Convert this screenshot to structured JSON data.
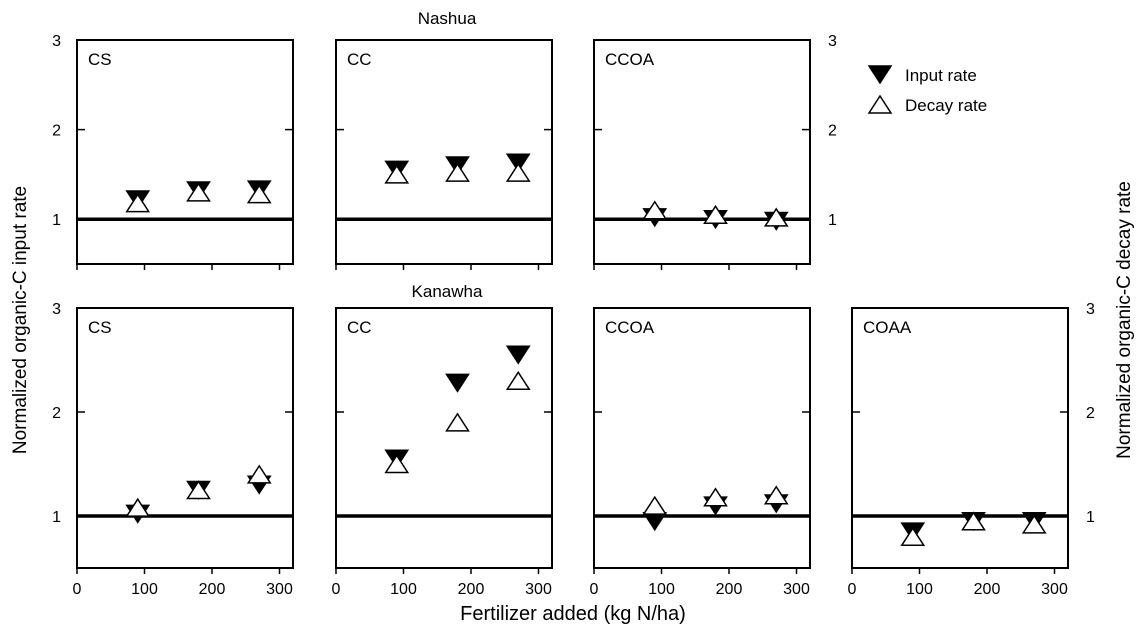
{
  "figure": {
    "top_title": "Nashua",
    "bottom_title": "Kanawha",
    "ylabel_left": "Normalized organic-C input rate",
    "ylabel_right": "Normalized organic-C decay rate",
    "xlabel": "Fertilizer added (kg N/ha)",
    "legend": [
      {
        "label": "Input rate",
        "marker": "filled-down-triangle"
      },
      {
        "label": "Decay rate",
        "marker": "open-up-triangle"
      }
    ],
    "colors": {
      "marker": "#000000",
      "reference_line": "#000000"
    }
  },
  "chart_data": [
    {
      "type": "scatter",
      "group": "Nashua",
      "panel_label": "CS",
      "x": [
        90,
        180,
        270
      ],
      "xlim": [
        0,
        320
      ],
      "ylim": [
        0.5,
        3
      ],
      "xticks": [
        0,
        100,
        200,
        300
      ],
      "yticks": [
        1,
        2,
        3
      ],
      "reference_line": 1,
      "series": [
        {
          "name": "Input rate",
          "values": [
            1.22,
            1.32,
            1.33
          ]
        },
        {
          "name": "Decay rate",
          "values": [
            1.18,
            1.3,
            1.28
          ]
        }
      ]
    },
    {
      "type": "scatter",
      "group": "Nashua",
      "panel_label": "CC",
      "x": [
        90,
        180,
        270
      ],
      "xlim": [
        0,
        320
      ],
      "ylim": [
        0.5,
        3
      ],
      "xticks": [
        0,
        100,
        200,
        300
      ],
      "yticks": [
        1,
        2,
        3
      ],
      "reference_line": 1,
      "series": [
        {
          "name": "Input rate",
          "values": [
            1.55,
            1.6,
            1.63
          ]
        },
        {
          "name": "Decay rate",
          "values": [
            1.5,
            1.52,
            1.52
          ]
        }
      ]
    },
    {
      "type": "scatter",
      "group": "Nashua",
      "panel_label": "CCOA",
      "x": [
        90,
        180,
        270
      ],
      "xlim": [
        0,
        320
      ],
      "ylim": [
        0.5,
        3
      ],
      "xticks": [
        0,
        100,
        200,
        300
      ],
      "yticks": [
        1,
        2,
        3
      ],
      "reference_line": 1,
      "series": [
        {
          "name": "Input rate",
          "values": [
            1.02,
            1.0,
            0.98
          ]
        },
        {
          "name": "Decay rate",
          "values": [
            1.1,
            1.05,
            1.02
          ]
        }
      ]
    },
    {
      "type": "scatter",
      "group": "Kanawha",
      "panel_label": "CS",
      "x": [
        90,
        180,
        270
      ],
      "xlim": [
        0,
        320
      ],
      "ylim": [
        0.5,
        3
      ],
      "xticks": [
        0,
        100,
        200,
        300
      ],
      "yticks": [
        1,
        2,
        3
      ],
      "reference_line": 1,
      "series": [
        {
          "name": "Input rate",
          "values": [
            1.02,
            1.25,
            1.3
          ]
        },
        {
          "name": "Decay rate",
          "values": [
            1.08,
            1.25,
            1.4
          ]
        }
      ]
    },
    {
      "type": "scatter",
      "group": "Kanawha",
      "panel_label": "CC",
      "x": [
        90,
        180,
        270
      ],
      "xlim": [
        0,
        320
      ],
      "ylim": [
        0.5,
        3
      ],
      "xticks": [
        0,
        100,
        200,
        300
      ],
      "yticks": [
        1,
        2,
        3
      ],
      "reference_line": 1,
      "series": [
        {
          "name": "Input rate",
          "values": [
            1.55,
            2.28,
            2.55
          ]
        },
        {
          "name": "Decay rate",
          "values": [
            1.5,
            1.9,
            2.3
          ]
        }
      ]
    },
    {
      "type": "scatter",
      "group": "Kanawha",
      "panel_label": "CCOA",
      "x": [
        90,
        180,
        270
      ],
      "xlim": [
        0,
        320
      ],
      "ylim": [
        0.5,
        3
      ],
      "xticks": [
        0,
        100,
        200,
        300
      ],
      "yticks": [
        1,
        2,
        3
      ],
      "reference_line": 1,
      "series": [
        {
          "name": "Input rate",
          "values": [
            0.95,
            1.1,
            1.12
          ]
        },
        {
          "name": "Decay rate",
          "values": [
            1.1,
            1.18,
            1.2
          ]
        }
      ]
    },
    {
      "type": "scatter",
      "group": "Kanawha",
      "panel_label": "COAA",
      "x": [
        90,
        180,
        270
      ],
      "xlim": [
        0,
        320
      ],
      "ylim": [
        0.5,
        3
      ],
      "xticks": [
        0,
        100,
        200,
        300
      ],
      "yticks": [
        1,
        2,
        3
      ],
      "reference_line": 1,
      "series": [
        {
          "name": "Input rate",
          "values": [
            0.85,
            0.95,
            0.95
          ]
        },
        {
          "name": "Decay rate",
          "values": [
            0.8,
            0.95,
            0.92
          ]
        }
      ]
    }
  ]
}
